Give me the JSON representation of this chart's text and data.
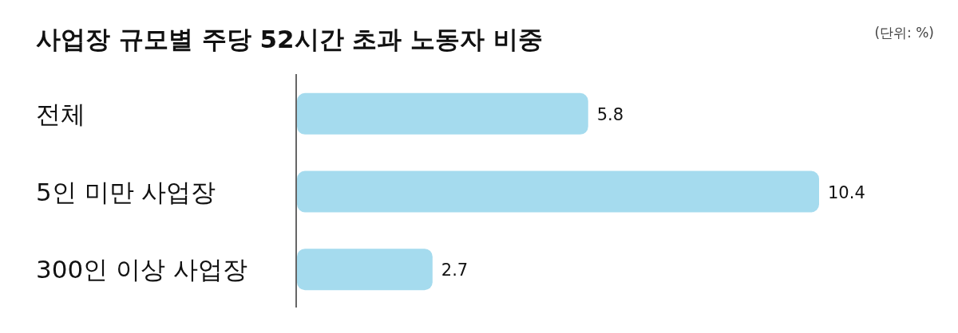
{
  "chart_data": {
    "type": "bar",
    "orientation": "horizontal",
    "title": "사업장 규모별 주당 52시간 초과 노동자 비중",
    "annotations": [
      "(단위: %)"
    ],
    "categories": [
      "전체",
      "5인 미만 사업장",
      "300인 이상 사업장"
    ],
    "values": [
      5.8,
      10.4,
      2.7
    ],
    "color": "#a5dbee",
    "data_labels": true
  }
}
